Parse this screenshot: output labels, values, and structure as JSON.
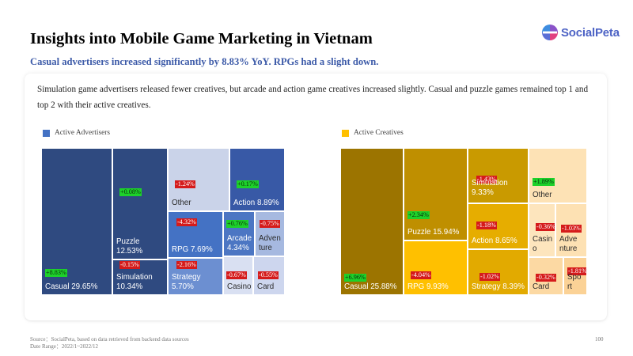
{
  "header": {
    "title": "Insights into Mobile Game Marketing in Vietnam",
    "subtitle": "Casual advertisers increased significantly by 8.83%  YoY. RPGs had a slight down.",
    "logo_text": "SocialPeta"
  },
  "description": "Simulation game advertisers released fewer creatives, but arcade and action game creatives increased slightly. Casual and puzzle games remained top 1 and top 2 with their active creatives.",
  "colors": {
    "advertisers_legend": "#4472c4",
    "creatives_legend": "#ffc000",
    "positive_change": "#1dd12a",
    "negative_change": "#d51b1b"
  },
  "footer": {
    "source": "Source：SocialPeta, based on data retrieved from backend data sources",
    "date_range": "Date Range：2022/1~2022/12",
    "page_number": "100"
  },
  "chart_data": [
    {
      "type": "treemap",
      "legend": "Active Advertisers",
      "items": [
        {
          "category": "Casual",
          "label": "Casual 29.65%",
          "share": 29.65,
          "yoy": "+8.83%",
          "color": "#2f4a80",
          "text_color": "#ffffff"
        },
        {
          "category": "Puzzle",
          "label": "Puzzle\n12.53%",
          "share": 12.53,
          "yoy": "+0.08%",
          "color": "#2f4a80",
          "text_color": "#ffffff"
        },
        {
          "category": "Simulation",
          "label": "Simulation\n10.34%",
          "share": 10.34,
          "yoy": "-0.15%",
          "color": "#2f4a80",
          "text_color": "#ffffff"
        },
        {
          "category": "Other",
          "label": "Other",
          "share": null,
          "yoy": "-1.24%",
          "color": "#cad3e9",
          "text_color": "#2b2b2b"
        },
        {
          "category": "Action",
          "label": "Action 8.89%",
          "share": 8.89,
          "yoy": "+0.17%",
          "color": "#3859a6",
          "text_color": "#ffffff"
        },
        {
          "category": "RPG",
          "label": "RPG 7.69%",
          "share": 7.69,
          "yoy": "-4.32%",
          "color": "#4472c4",
          "text_color": "#ffffff"
        },
        {
          "category": "Strategy",
          "label": "Strategy\n5.70%",
          "share": 5.7,
          "yoy": "-2.16%",
          "color": "#6c8fd1",
          "text_color": "#ffffff"
        },
        {
          "category": "Arcade",
          "label": "Arcade\n4.34%",
          "share": 4.34,
          "yoy": "+0.76%",
          "color": "#4c76c3",
          "text_color": "#ffffff"
        },
        {
          "category": "Adventure",
          "label": "Adven\nture",
          "share": null,
          "yoy": "-0.75%",
          "color": "#a6b9e0",
          "text_color": "#2b2b2b"
        },
        {
          "category": "Casino",
          "label": "Casino",
          "share": null,
          "yoy": "-0.67%",
          "color": "#d9e0f2",
          "text_color": "#2b2b2b"
        },
        {
          "category": "Card",
          "label": "Card",
          "share": null,
          "yoy": "-0.55%",
          "color": "#cdd6ee",
          "text_color": "#2b2b2b"
        }
      ]
    },
    {
      "type": "treemap",
      "legend": "Active Creatives",
      "items": [
        {
          "category": "Casual",
          "label": "Casual 25.88%",
          "share": 25.88,
          "yoy": "+6.96%",
          "color": "#9c7400",
          "text_color": "#ffffff"
        },
        {
          "category": "Puzzle",
          "label": "Puzzle 15.94%",
          "share": 15.94,
          "yoy": "+2.34%",
          "color": "#bf8f00",
          "text_color": "#ffffff"
        },
        {
          "category": "RPG",
          "label": "RPG 9.93%",
          "share": 9.93,
          "yoy": "-4.04%",
          "color": "#ffc000",
          "text_color": "#ffffff"
        },
        {
          "category": "Simulation",
          "label": "Simulation\n9.33%",
          "share": 9.33,
          "yoy": "-1.43%",
          "color": "#c99a00",
          "text_color": "#ffffff"
        },
        {
          "category": "Action",
          "label": "Action 8.65%",
          "share": 8.65,
          "yoy": "-1.18%",
          "color": "#e6ad00",
          "text_color": "#ffffff"
        },
        {
          "category": "Strategy",
          "label": "Strategy 8.39%",
          "share": 8.39,
          "yoy": "-1.02%",
          "color": "#e2aa00",
          "text_color": "#ffffff"
        },
        {
          "category": "Other",
          "label": "Other",
          "share": null,
          "yoy": "+1.89%",
          "color": "#fde2b5",
          "text_color": "#2b2b2b"
        },
        {
          "category": "Casino",
          "label": "Casin\no",
          "share": null,
          "yoy": "-0.36%",
          "color": "#fde5bd",
          "text_color": "#2b2b2b"
        },
        {
          "category": "Adventure",
          "label": "Adve\nnture",
          "share": null,
          "yoy": "-1.03%",
          "color": "#fde1b3",
          "text_color": "#2b2b2b"
        },
        {
          "category": "Card",
          "label": "Card",
          "share": null,
          "yoy": "-0.32%",
          "color": "#fcd9a3",
          "text_color": "#2b2b2b"
        },
        {
          "category": "Sport",
          "label": "Spo\nrt",
          "share": null,
          "yoy": "-1.81%",
          "color": "#fbd296",
          "text_color": "#2b2b2b"
        }
      ]
    }
  ]
}
